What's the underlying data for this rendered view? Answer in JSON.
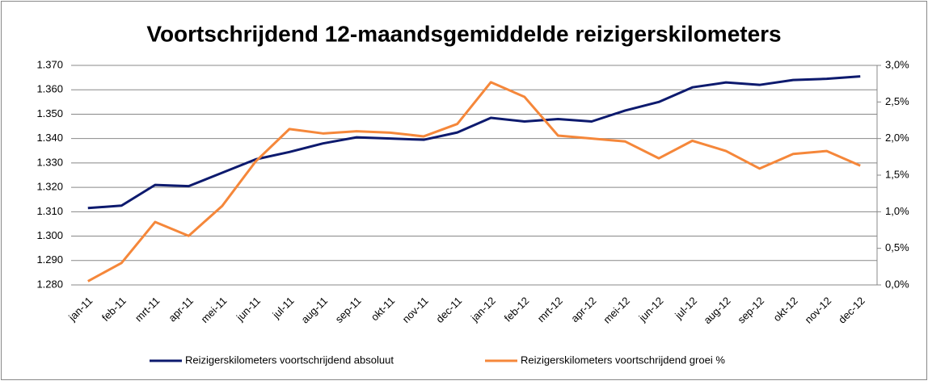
{
  "chart_data": {
    "type": "line",
    "title": "Voortschrijdend 12-maandsgemiddelde reizigerskilometers",
    "categories": [
      "jan-11",
      "feb-11",
      "mrt-11",
      "apr-11",
      "mei-11",
      "jun-11",
      "jul-11",
      "aug-11",
      "sep-11",
      "okt-11",
      "nov-11",
      "dec-11",
      "jan-12",
      "feb-12",
      "mrt-12",
      "apr-12",
      "mei-12",
      "jun-12",
      "jul-12",
      "aug-12",
      "sep-12",
      "okt-12",
      "nov-12",
      "dec-12"
    ],
    "series": [
      {
        "name": "Reizigerskilometers voortschrijdend absoluut",
        "color": "#0d1a6e",
        "axis": "y",
        "values": [
          1311.5,
          1312.5,
          1321,
          1320.5,
          1326,
          1331.5,
          1334.5,
          1338,
          1340.5,
          1340,
          1339.5,
          1342.5,
          1348.5,
          1347,
          1348,
          1347,
          1351.5,
          1355,
          1361,
          1363,
          1362,
          1364,
          1364.5,
          1365.5
        ]
      },
      {
        "name": "Reizigerskilometers voortschrijdend groei %",
        "color": "#f5873a",
        "axis": "y2",
        "values": [
          0.05,
          0.3,
          0.86,
          0.67,
          1.08,
          1.69,
          2.13,
          2.07,
          2.1,
          2.08,
          2.03,
          2.2,
          2.77,
          2.57,
          2.04,
          2.0,
          1.96,
          1.73,
          1.97,
          1.83,
          1.59,
          1.79,
          1.83,
          1.63
        ]
      }
    ],
    "ylim": [
      1280,
      1370
    ],
    "yticks": [
      {
        "value": 1280,
        "label": "1.280"
      },
      {
        "value": 1290,
        "label": "1.290"
      },
      {
        "value": 1300,
        "label": "1.300"
      },
      {
        "value": 1310,
        "label": "1.310"
      },
      {
        "value": 1320,
        "label": "1.320"
      },
      {
        "value": 1330,
        "label": "1.330"
      },
      {
        "value": 1340,
        "label": "1.340"
      },
      {
        "value": 1350,
        "label": "1.350"
      },
      {
        "value": 1360,
        "label": "1.360"
      },
      {
        "value": 1370,
        "label": "1.370"
      }
    ],
    "y2lim": [
      0,
      3
    ],
    "y2ticks": [
      {
        "value": 0,
        "label": "0,0%"
      },
      {
        "value": 0.5,
        "label": "0,5%"
      },
      {
        "value": 1,
        "label": "1,0%"
      },
      {
        "value": 1.5,
        "label": "1,5%"
      },
      {
        "value": 2,
        "label": "2,0%"
      },
      {
        "value": 2.5,
        "label": "2,5%"
      },
      {
        "value": 3,
        "label": "3,0%"
      }
    ],
    "grid": true,
    "legend": "bottom"
  }
}
